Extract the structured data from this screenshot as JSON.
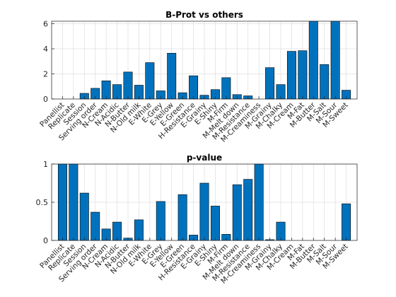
{
  "chart_data": [
    {
      "type": "bar",
      "title": "B-Prot vs others",
      "xlabel": "",
      "ylabel": "",
      "ylim": [
        0,
        6.2
      ],
      "yticks": [
        0,
        2,
        4,
        6
      ],
      "ytick_labels": [
        "0",
        "2",
        "4",
        "6"
      ],
      "grid": true,
      "legend": "none",
      "bar_color": "#0072bd",
      "categories": [
        "Panellist",
        "Replicate",
        "Session",
        "Serving order",
        "N-Cream",
        "N-Acidic",
        "N-Butter",
        "N-Old milk",
        "E-White",
        "E-Grey",
        "E-Yellow",
        "E-Green",
        "H-Resistance",
        "E-Grainy",
        "E-Shiny",
        "M-Firm",
        "M-Melt down",
        "M-Resistance",
        "M-Creaminess",
        "M-Grainy",
        "M-Chalky",
        "M-Cream",
        "M-Fat",
        "M-Butter",
        "M-Salt",
        "M-Sour",
        "M-Sweet"
      ],
      "values": [
        0,
        0,
        0.45,
        0.85,
        1.45,
        1.15,
        2.15,
        1.1,
        2.9,
        0.65,
        3.65,
        0.5,
        1.85,
        0.3,
        0.75,
        1.7,
        0.35,
        0.25,
        0,
        2.5,
        1.15,
        3.8,
        3.85,
        6.2,
        2.75,
        6.2,
        0.7
      ]
    },
    {
      "type": "bar",
      "title": "p-value",
      "xlabel": "",
      "ylabel": "",
      "ylim": [
        0,
        1
      ],
      "yticks": [
        0,
        0.5,
        1
      ],
      "ytick_labels": [
        "0",
        "0.5",
        "1"
      ],
      "grid": true,
      "legend": "none",
      "bar_color": "#0072bd",
      "categories": [
        "Panellist",
        "Replicate",
        "Session",
        "Serving order",
        "N-Cream",
        "N-Acidic",
        "N-Butter",
        "N-Old milk",
        "E-White",
        "E-Grey",
        "E-Yellow",
        "E-Green",
        "H-Resistance",
        "E-Grainy",
        "E-Shiny",
        "M-Firm",
        "M-Melt down",
        "M-Resistance",
        "M-Creaminess",
        "M-Grainy",
        "M-Chalky",
        "M-Cream",
        "M-Fat",
        "M-Butter",
        "M-Salt",
        "M-Sour",
        "M-Sweet"
      ],
      "values": [
        1,
        1,
        0.62,
        0.37,
        0.15,
        0.24,
        0.03,
        0.27,
        0,
        0.51,
        0,
        0.6,
        0.07,
        0.75,
        0.45,
        0.08,
        0.73,
        0.8,
        1,
        0.01,
        0.24,
        0,
        0,
        0,
        0,
        0,
        0.48
      ]
    }
  ]
}
